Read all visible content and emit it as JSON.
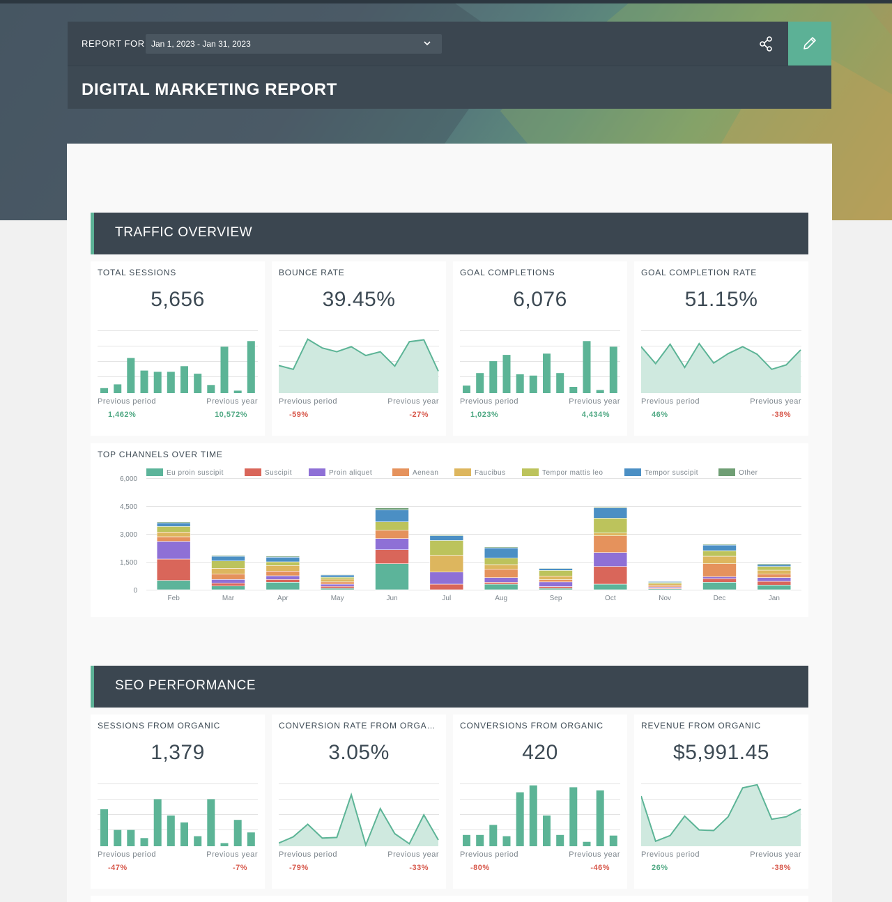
{
  "header": {
    "report_for": "REPORT FOR",
    "date_range": "Jan 1, 2023 - Jan 31, 2023",
    "title": "DIGITAL MARKETING REPORT"
  },
  "colors": {
    "accent": "#5cb196",
    "positive": "#4fa883",
    "negative": "#d7574a",
    "header_bg": "#3b4650"
  },
  "traffic": {
    "heading": "TRAFFIC OVERVIEW",
    "cards": [
      {
        "label": "TOTAL SESSIONS",
        "value": "5,656",
        "type": "bar",
        "series": [
          8,
          14,
          56,
          36,
          34,
          34,
          43,
          31,
          13,
          74,
          4,
          83
        ],
        "prev_period_label": "Previous period",
        "prev_year_label": "Previous year",
        "prev_period": "1,462%",
        "prev_year": "10,572%",
        "pp_sign": "pos",
        "py_sign": "pos"
      },
      {
        "label": "BOUNCE RATE",
        "value": "39.45%",
        "type": "area",
        "series": [
          44,
          38,
          86,
          72,
          66,
          74,
          60,
          66,
          43,
          82,
          85,
          35
        ],
        "prev_period_label": "Previous period",
        "prev_year_label": "Previous year",
        "prev_period": "-59%",
        "prev_year": "-27%",
        "pp_sign": "neg",
        "py_sign": "neg"
      },
      {
        "label": "GOAL COMPLETIONS",
        "value": "6,076",
        "type": "bar",
        "series": [
          12,
          32,
          51,
          61,
          30,
          28,
          63,
          32,
          10,
          83,
          5,
          74
        ],
        "prev_period_label": "Previous period",
        "prev_year_label": "Previous year",
        "prev_period": "1,023%",
        "prev_year": "4,434%",
        "pp_sign": "pos",
        "py_sign": "pos"
      },
      {
        "label": "GOAL COMPLETION RATE",
        "value": "51.15%",
        "type": "area",
        "series": [
          74,
          47,
          78,
          41,
          79,
          48,
          63,
          74,
          62,
          38,
          45,
          69
        ],
        "prev_period_label": "Previous period",
        "prev_year_label": "Previous year",
        "prev_period": "46%",
        "prev_year": "-38%",
        "pp_sign": "pos",
        "py_sign": "neg"
      }
    ]
  },
  "seo": {
    "heading": "SEO PERFORMANCE",
    "cards": [
      {
        "label": "SESSIONS FROM ORGANIC",
        "value": "1,379",
        "type": "bar",
        "series": [
          59,
          26,
          26,
          13,
          75,
          49,
          38,
          16,
          75,
          5,
          42,
          22
        ],
        "prev_period_label": "Previous period",
        "prev_year_label": "Previous year",
        "prev_period": "-47%",
        "prev_year": "-7%",
        "pp_sign": "neg",
        "py_sign": "neg"
      },
      {
        "label": "CONVERSION RATE FROM ORGANIC",
        "value": "3.05%",
        "type": "area",
        "series": [
          5,
          15,
          35,
          13,
          14,
          82,
          2,
          60,
          20,
          4,
          50,
          10
        ],
        "prev_period_label": "Previous period",
        "prev_year_label": "Previous year",
        "prev_period": "-79%",
        "prev_year": "-33%",
        "pp_sign": "neg",
        "py_sign": "neg"
      },
      {
        "label": "CONVERSIONS FROM ORGANIC",
        "value": "420",
        "type": "bar",
        "series": [
          18,
          18,
          34,
          16,
          86,
          97,
          49,
          18,
          94,
          7,
          89,
          17
        ],
        "prev_period_label": "Previous period",
        "prev_year_label": "Previous year",
        "prev_period": "-80%",
        "prev_year": "-46%",
        "pp_sign": "neg",
        "py_sign": "neg"
      },
      {
        "label": "REVENUE FROM ORGANIC",
        "value": "$5,991.45",
        "type": "area",
        "series": [
          80,
          8,
          17,
          48,
          26,
          25,
          47,
          93,
          98,
          43,
          47,
          59
        ],
        "prev_period_label": "Previous period",
        "prev_year_label": "Previous year",
        "prev_period": "26%",
        "prev_year": "-38%",
        "pp_sign": "pos",
        "py_sign": "neg"
      }
    ]
  },
  "chart_data": {
    "type": "bar",
    "title": "TOP CHANNELS OVER TIME",
    "stacked": true,
    "ylim": [
      0,
      6000
    ],
    "yticks": [
      "6,000",
      "4,500",
      "3,000",
      "1,500",
      "0"
    ],
    "ytick_values": [
      6000,
      4500,
      3000,
      1500,
      0
    ],
    "legend_position": "top",
    "categories": [
      "Feb",
      "Mar",
      "Apr",
      "May",
      "Jun",
      "Jul",
      "Aug",
      "Sep",
      "Oct",
      "Nov",
      "Dec",
      "Jan"
    ],
    "series": [
      {
        "name": "Eu proin suscipit",
        "color": "#5cb49a",
        "values": [
          500,
          200,
          400,
          80,
          1400,
          0,
          300,
          80,
          300,
          50,
          400,
          250
        ]
      },
      {
        "name": "Suscipit",
        "color": "#d9665a",
        "values": [
          1150,
          150,
          150,
          100,
          750,
          300,
          100,
          90,
          950,
          50,
          200,
          200
        ]
      },
      {
        "name": "Proin aliquet",
        "color": "#8e70d6",
        "values": [
          950,
          200,
          200,
          120,
          600,
          650,
          250,
          250,
          750,
          50,
          100,
          200
        ]
      },
      {
        "name": "Aenean",
        "color": "#e5925c",
        "values": [
          250,
          300,
          250,
          120,
          450,
          0,
          450,
          120,
          900,
          80,
          700,
          200
        ]
      },
      {
        "name": "Faucibus",
        "color": "#ddb65e",
        "values": [
          250,
          300,
          300,
          150,
          0,
          900,
          250,
          200,
          150,
          80,
          400,
          200
        ]
      },
      {
        "name": "Tempor mattis leo",
        "color": "#bcc35c",
        "values": [
          300,
          400,
          200,
          100,
          450,
          800,
          350,
          300,
          800,
          80,
          300,
          200
        ]
      },
      {
        "name": "Tempor suscipit",
        "color": "#4b8fc4",
        "values": [
          200,
          250,
          250,
          120,
          650,
          250,
          550,
          100,
          550,
          50,
          300,
          100
        ]
      },
      {
        "name": "Other",
        "color": "#6f9e74",
        "values": [
          50,
          50,
          50,
          30,
          100,
          50,
          50,
          30,
          50,
          20,
          50,
          50
        ]
      }
    ]
  }
}
